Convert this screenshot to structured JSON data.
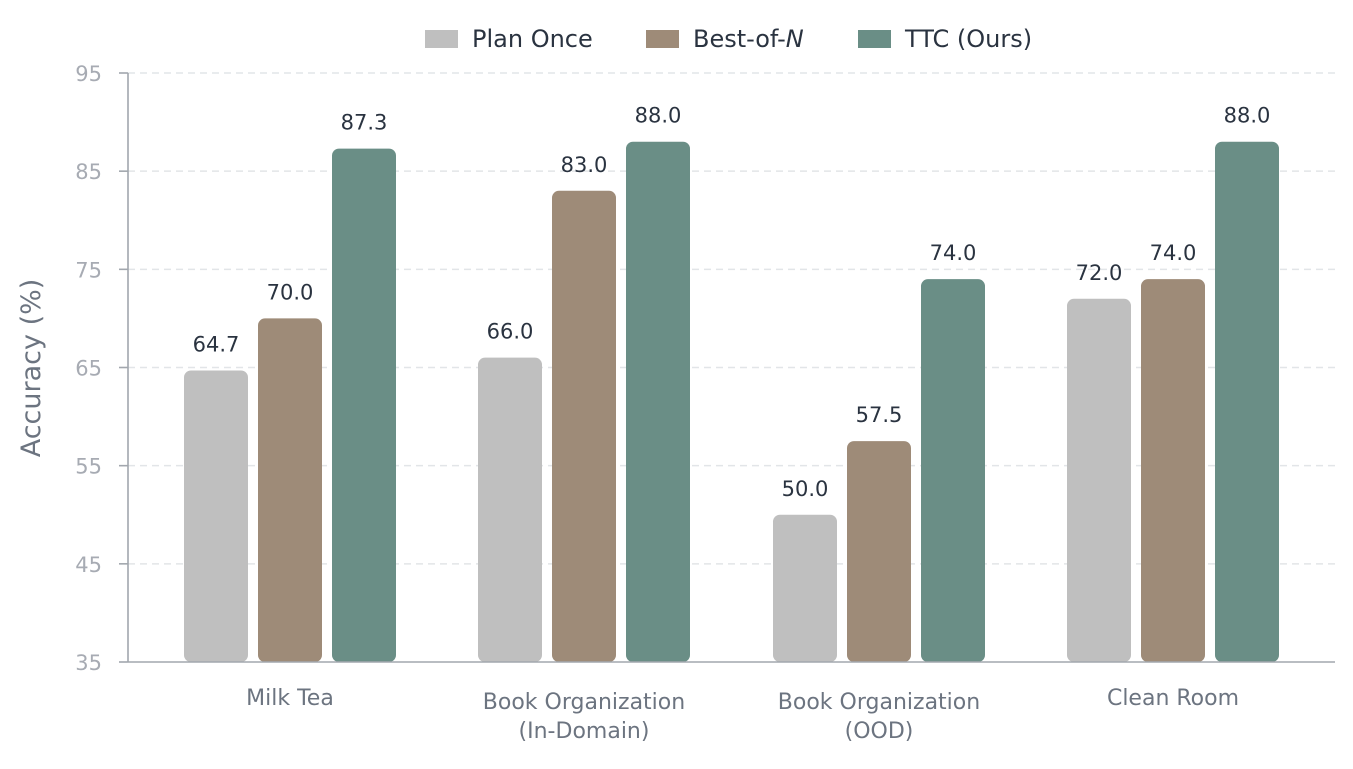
{
  "chart_data": {
    "type": "bar",
    "title": "",
    "xlabel": "",
    "ylabel": "Accuracy (%)",
    "ylim": [
      35,
      95
    ],
    "yticks": [
      35,
      45,
      55,
      65,
      75,
      85,
      95
    ],
    "grid": true,
    "legend_position": "top-center",
    "categories": [
      [
        "Milk Tea"
      ],
      [
        "Book Organization",
        "(In-Domain)"
      ],
      [
        "Book Organization",
        "(OOD)"
      ],
      [
        "Clean Room"
      ]
    ],
    "series": [
      {
        "name": "Plan Once",
        "name_parts": [
          "Plan Once"
        ],
        "color": "#bfbfbf",
        "values": [
          64.7,
          66.0,
          50.0,
          72.0
        ],
        "labels": [
          "64.7",
          "66.0",
          "50.0",
          "72.0"
        ]
      },
      {
        "name": "Best-of-N",
        "name_parts": [
          "Best-of-",
          "N"
        ],
        "color": "#9e8b78",
        "values": [
          70.0,
          83.0,
          57.5,
          74.0
        ],
        "labels": [
          "70.0",
          "83.0",
          "57.5",
          "74.0"
        ]
      },
      {
        "name": "TTC (Ours)",
        "name_parts": [
          "TTC (Ours)"
        ],
        "color": "#6a8e86",
        "values": [
          87.3,
          88.0,
          74.0,
          88.0
        ],
        "labels": [
          "87.3",
          "88.0",
          "74.0",
          "88.0"
        ]
      }
    ]
  }
}
